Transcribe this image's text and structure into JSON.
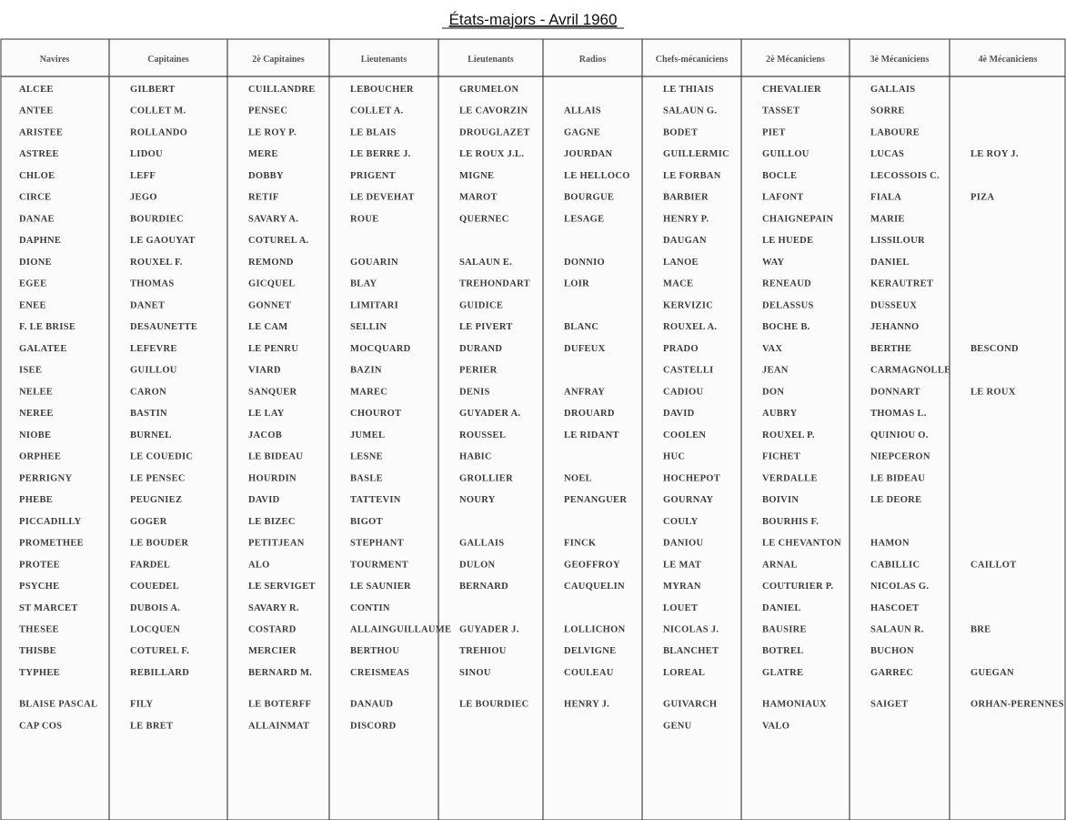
{
  "title": "États-majors - Avril 1960",
  "table": {
    "header": [
      "Navires",
      "Capitaines",
      "2è Capitaines",
      "Lieutenants",
      "Lieutenants",
      "Radios",
      "Chefs-mécaniciens",
      "2è Mécaniciens",
      "3è Mécaniciens",
      "4è Mécaniciens"
    ],
    "rows": [
      [
        "ALCEE",
        "GILBERT",
        "CUILLANDRE",
        "LEBOUCHER",
        "GRUMELON",
        null,
        "LE THIAIS",
        "CHEVALIER",
        "GALLAIS",
        null
      ],
      [
        "ANTEE",
        "COLLET M.",
        "PENSEC",
        "COLLET A.",
        "LE CAVORZIN",
        "ALLAIS",
        "SALAUN G.",
        "TASSET",
        "SORRE",
        null
      ],
      [
        "ARISTEE",
        "ROLLANDO",
        "LE ROY P.",
        "LE BLAIS",
        "DROUGLAZET",
        "GAGNE",
        "BODET",
        "PIET",
        "LABOURE",
        null
      ],
      [
        "ASTREE",
        "LIDOU",
        "MERE",
        "LE BERRE J.",
        "LE ROUX J.L.",
        "JOURDAN",
        "GUILLERMIC",
        "GUILLOU",
        "LUCAS",
        "LE ROY J."
      ],
      [
        "CHLOE",
        "LEFF",
        "DOBBY",
        "PRIGENT",
        "MIGNE",
        "LE HELLOCO",
        "LE FORBAN",
        "BOCLE",
        "LECOSSOIS C.",
        null
      ],
      [
        "CIRCE",
        "JEGO",
        "RETIF",
        "LE DEVEHAT",
        "MAROT",
        "BOURGUE",
        "BARBIER",
        "LAFONT",
        "FIALA",
        "PIZA"
      ],
      [
        "DANAE",
        "BOURDIEC",
        "SAVARY A.",
        "ROUE",
        "QUERNEC",
        "LESAGE",
        "HENRY P.",
        "CHAIGNEPAIN",
        "MARIE",
        null
      ],
      [
        "DAPHNE",
        "LE GAOUYAT",
        "COTUREL A.",
        null,
        null,
        null,
        "DAUGAN",
        "LE HUEDE",
        "LISSILOUR",
        null
      ],
      [
        "DIONE",
        "ROUXEL F.",
        "REMOND",
        "GOUARIN",
        "SALAUN E.",
        "DONNIO",
        "LANOE",
        "WAY",
        "DANIEL",
        null
      ],
      [
        "EGEE",
        "THOMAS",
        "GICQUEL",
        "BLAY",
        "TREHONDART",
        "LOIR",
        "MACE",
        "RENEAUD",
        "KERAUTRET",
        null
      ],
      [
        "ENEE",
        "DANET",
        "GONNET",
        "LIMITARI",
        "GUIDICE",
        null,
        "KERVIZIC",
        "DELASSUS",
        "DUSSEUX",
        null
      ],
      [
        "F. LE BRISE",
        "DESAUNETTE",
        "LE CAM",
        "SELLIN",
        "LE PIVERT",
        "BLANC",
        "ROUXEL A.",
        "BOCHE B.",
        "JEHANNO",
        null
      ],
      [
        "GALATEE",
        "LEFEVRE",
        "LE PENRU",
        "MOCQUARD",
        "DURAND",
        "DUFEUX",
        "PRADO",
        "VAX",
        "BERTHE",
        "BESCOND"
      ],
      [
        "ISEE",
        "GUILLOU",
        "VIARD",
        "BAZIN",
        "PERIER",
        null,
        "CASTELLI",
        "JEAN",
        "CARMAGNOLLE",
        null
      ],
      [
        "NELEE",
        "CARON",
        "SANQUER",
        "MAREC",
        "DENIS",
        "ANFRAY",
        "CADIOU",
        "DON",
        "DONNART",
        "LE ROUX"
      ],
      [
        "NEREE",
        "BASTIN",
        "LE LAY",
        "CHOUROT",
        "GUYADER A.",
        "DROUARD",
        "DAVID",
        "AUBRY",
        "THOMAS L.",
        null
      ],
      [
        "NIOBE",
        "BURNEL",
        "JACOB",
        "JUMEL",
        "ROUSSEL",
        "LE RIDANT",
        "COOLEN",
        "ROUXEL P.",
        "QUINIOU O.",
        null
      ],
      [
        "ORPHEE",
        "LE COUEDIC",
        "LE BIDEAU",
        "LESNE",
        "HABIC",
        null,
        "HUC",
        "FICHET",
        "NIEPCERON",
        null
      ],
      [
        "PERRIGNY",
        "LE PENSEC",
        "HOURDIN",
        "BASLE",
        "GROLLIER",
        "NOEL",
        "HOCHEPOT",
        "VERDALLE",
        "LE BIDEAU",
        null
      ],
      [
        "PHEBE",
        "PEUGNIEZ",
        "DAVID",
        "TATTEVIN",
        "NOURY",
        "PENANGUER",
        "GOURNAY",
        "BOIVIN",
        "LE DEORE",
        null
      ],
      [
        "PICCADILLY",
        "GOGER",
        "LE BIZEC",
        "BIGOT",
        null,
        null,
        "COULY",
        "BOURHIS F.",
        null,
        null
      ],
      [
        "PROMETHEE",
        "LE BOUDER",
        "PETITJEAN",
        "STEPHANT",
        "GALLAIS",
        "FINCK",
        "DANIOU",
        "LE CHEVANTON",
        "HAMON",
        null
      ],
      [
        "PROTEE",
        "FARDEL",
        "ALO",
        "TOURMENT",
        "DULON",
        "GEOFFROY",
        "LE MAT",
        "ARNAL",
        "CABILLIC",
        "CAILLOT"
      ],
      [
        "PSYCHE",
        "COUEDEL",
        "LE SERVIGET",
        "LE SAUNIER",
        "BERNARD",
        "CAUQUELIN",
        "MYRAN",
        "COUTURIER P.",
        "NICOLAS G.",
        null
      ],
      [
        "ST MARCET",
        "DUBOIS A.",
        "SAVARY R.",
        "CONTIN",
        null,
        null,
        "LOUET",
        "DANIEL",
        "HASCOET",
        null
      ],
      [
        "THESEE",
        "LOCQUEN",
        "COSTARD",
        "ALLAINGUILLAUME",
        "GUYADER J.",
        "LOLLICHON",
        "NICOLAS J.",
        "BAUSIRE",
        "SALAUN R.",
        "BRE"
      ],
      [
        "THISBE",
        "COTUREL F.",
        "MERCIER",
        "BERTHOU",
        "TREHIOU",
        "DELVIGNE",
        "BLANCHET",
        "BOTREL",
        "BUCHON",
        null
      ],
      [
        "TYPHEE",
        "REBILLARD",
        "BERNARD M.",
        "CREISMEAS",
        "SINOU",
        "COULEAU",
        "LOREAL",
        "GLATRE",
        "GARREC",
        "GUEGAN"
      ],
      [
        "BLAISE PASCAL",
        "FILY",
        "LE BOTERFF",
        "DANAUD",
        "LE BOURDIEC",
        "HENRY J.",
        "GUIVARCH",
        "HAMONIAUX",
        "SAIGET",
        "ORHAN-PERENNES"
      ],
      [
        "CAP COS",
        "LE BRET",
        "ALLAINMAT",
        "DISCORD",
        null,
        null,
        "GENU",
        "VALO",
        null,
        null
      ]
    ]
  }
}
